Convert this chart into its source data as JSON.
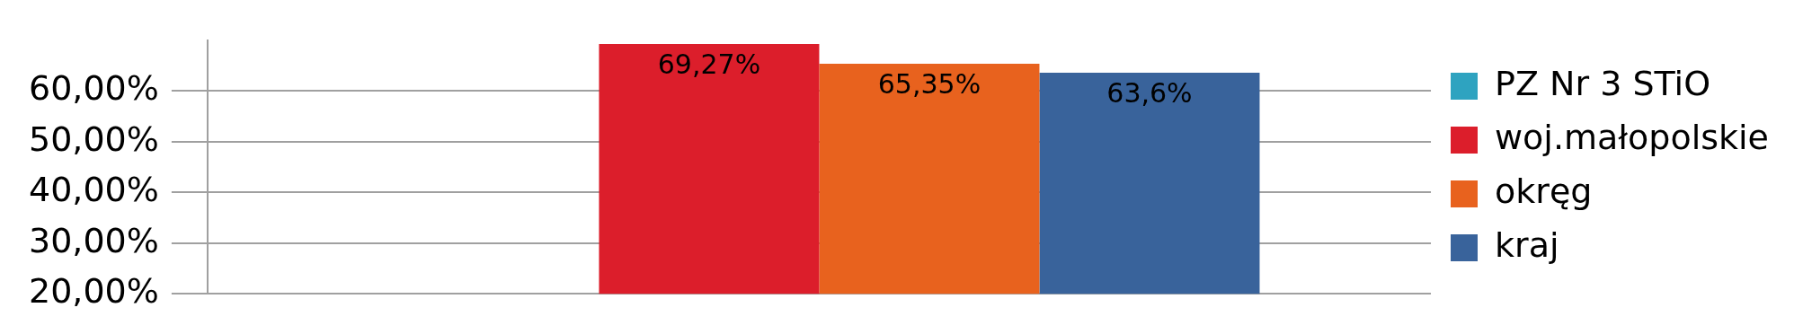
{
  "chart_data": {
    "type": "bar",
    "categories": [
      null
    ],
    "series": [
      {
        "name": "PZ Nr 3 STiO",
        "color": "#2ea3c0",
        "values": [
          null
        ],
        "value_labels": [
          null
        ]
      },
      {
        "name": "woj.małopolskie",
        "color": "#dc1e2b",
        "values": [
          69.27
        ],
        "value_labels": [
          "69,27%"
        ]
      },
      {
        "name": "okręg",
        "color": "#e8621e",
        "values": [
          65.35
        ],
        "value_labels": [
          "65,35%"
        ]
      },
      {
        "name": "kraj",
        "color": "#39639b",
        "values": [
          63.6
        ],
        "value_labels": [
          "63,6%"
        ]
      }
    ],
    "ylim": [
      20,
      70
    ],
    "yticks": [
      {
        "value": 20,
        "label": "20,00%"
      },
      {
        "value": 30,
        "label": "30,00%"
      },
      {
        "value": 40,
        "label": "40,00%"
      },
      {
        "value": 50,
        "label": "50,00%"
      },
      {
        "value": 60,
        "label": "60,00%"
      }
    ],
    "grid": "y",
    "legend": "right"
  }
}
